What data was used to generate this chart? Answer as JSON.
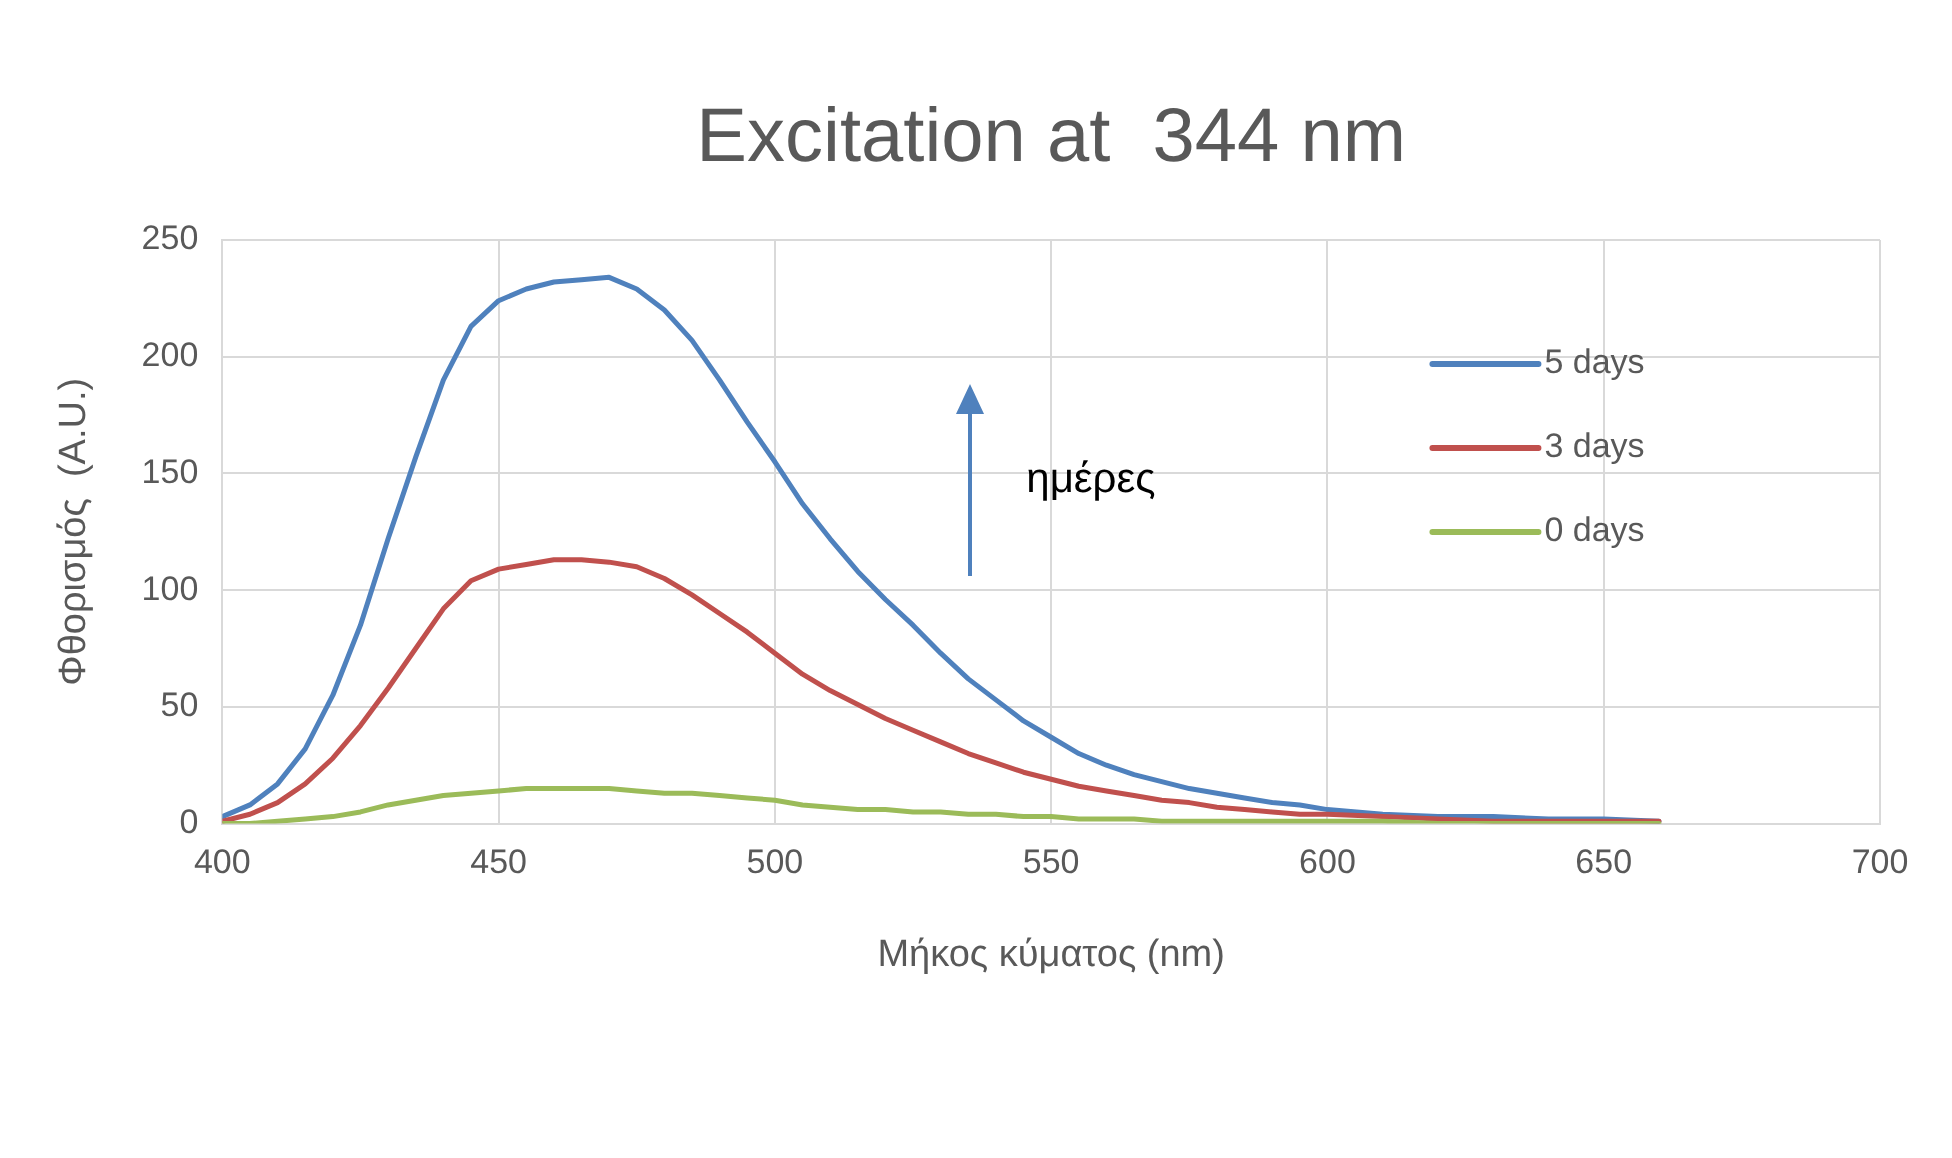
{
  "chart_data": {
    "type": "line",
    "title": "Excitation at  344 nm",
    "xlabel": "Μήκος κύματος (nm)",
    "ylabel": "Φθορισμός  (A.U.)",
    "annotations": [
      "ημέρες"
    ],
    "x": [
      400,
      405,
      410,
      415,
      420,
      425,
      430,
      435,
      440,
      445,
      450,
      455,
      460,
      465,
      470,
      475,
      480,
      485,
      490,
      495,
      500,
      505,
      510,
      515,
      520,
      525,
      530,
      535,
      540,
      545,
      550,
      555,
      560,
      565,
      570,
      575,
      580,
      585,
      590,
      595,
      600,
      610,
      620,
      630,
      640,
      650,
      660
    ],
    "series": [
      {
        "name": "5 days",
        "color": "#4f81bd",
        "values": [
          3,
          8,
          17,
          32,
          55,
          85,
          122,
          157,
          190,
          213,
          224,
          229,
          232,
          233,
          234,
          229,
          220,
          207,
          190,
          172,
          155,
          137,
          122,
          108,
          96,
          85,
          73,
          62,
          53,
          44,
          37,
          30,
          25,
          21,
          18,
          15,
          13,
          11,
          9,
          8,
          6,
          4,
          3,
          3,
          2,
          2,
          1
        ]
      },
      {
        "name": "3 days",
        "color": "#c0504d",
        "values": [
          1,
          4,
          9,
          17,
          28,
          42,
          58,
          75,
          92,
          104,
          109,
          111,
          113,
          113,
          112,
          110,
          105,
          98,
          90,
          82,
          73,
          64,
          57,
          51,
          45,
          40,
          35,
          30,
          26,
          22,
          19,
          16,
          14,
          12,
          10,
          9,
          7,
          6,
          5,
          4,
          4,
          3,
          2,
          1,
          1,
          1,
          1
        ]
      },
      {
        "name": "0 days",
        "color": "#9bbb59",
        "values": [
          0,
          0,
          1,
          2,
          3,
          5,
          8,
          10,
          12,
          13,
          14,
          15,
          15,
          15,
          15,
          14,
          13,
          13,
          12,
          11,
          10,
          8,
          7,
          6,
          6,
          5,
          5,
          4,
          4,
          3,
          3,
          2,
          2,
          2,
          1,
          1,
          1,
          1,
          1,
          1,
          1,
          1,
          0,
          0,
          0,
          0,
          0
        ]
      }
    ],
    "xlim": [
      400,
      700
    ],
    "xticks": [
      400,
      450,
      500,
      550,
      600,
      650,
      700
    ],
    "ylim": [
      0,
      250
    ],
    "yticks": [
      0,
      50,
      100,
      150,
      200,
      250
    ],
    "grid": true,
    "legend": "right",
    "marker": "none",
    "line_style": "solid"
  }
}
